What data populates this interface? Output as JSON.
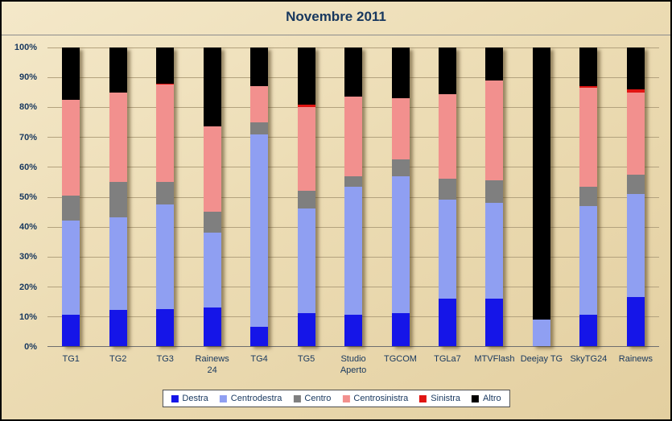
{
  "title": "Novembre 2011",
  "chart_data": {
    "type": "bar",
    "subtype": "stacked-100-percent",
    "title": "Novembre 2011",
    "categories": [
      "TG1",
      "TG2",
      "TG3",
      "Rainews 24",
      "TG4",
      "TG5",
      "Studio Aperto",
      "TGCOM",
      "TGLa7",
      "MTVFlash",
      "Deejay TG",
      "SkyTG24",
      "Rainews"
    ],
    "series": [
      {
        "name": "Destra",
        "color": "#1515e8",
        "values": [
          10.5,
          12,
          12.5,
          13,
          6.5,
          11,
          10.5,
          11,
          16,
          16,
          0,
          10.5,
          16.5
        ]
      },
      {
        "name": "Centrodestra",
        "color": "#8f9ff2",
        "values": [
          31.5,
          31,
          35,
          25,
          64.5,
          35,
          43,
          46,
          33,
          32,
          9,
          36.5,
          34.5
        ]
      },
      {
        "name": "Centro",
        "color": "#7f7f7f",
        "values": [
          8.5,
          12,
          7.5,
          7,
          4,
          6,
          3.5,
          5.5,
          7,
          7.5,
          0,
          6.5,
          6.5
        ]
      },
      {
        "name": "Centrosinistra",
        "color": "#f2908e",
        "values": [
          32,
          30,
          32.5,
          28.5,
          12,
          28,
          26.5,
          20.5,
          28.5,
          33.5,
          0,
          33,
          27.5
        ]
      },
      {
        "name": "Sinistra",
        "color": "#e01412",
        "values": [
          0,
          0,
          0.5,
          0,
          0,
          1,
          0,
          0,
          0,
          0,
          0,
          0.5,
          1
        ]
      },
      {
        "name": "Altro",
        "color": "#000000",
        "values": [
          17.5,
          15,
          12,
          26.5,
          13,
          19,
          16.5,
          17,
          15.5,
          11,
          91,
          13,
          14
        ]
      }
    ],
    "y_ticks": [
      "0%",
      "10%",
      "20%",
      "30%",
      "40%",
      "50%",
      "60%",
      "70%",
      "80%",
      "90%",
      "100%"
    ],
    "ylim": [
      0,
      100
    ],
    "grid": true,
    "legend_position": "bottom"
  }
}
